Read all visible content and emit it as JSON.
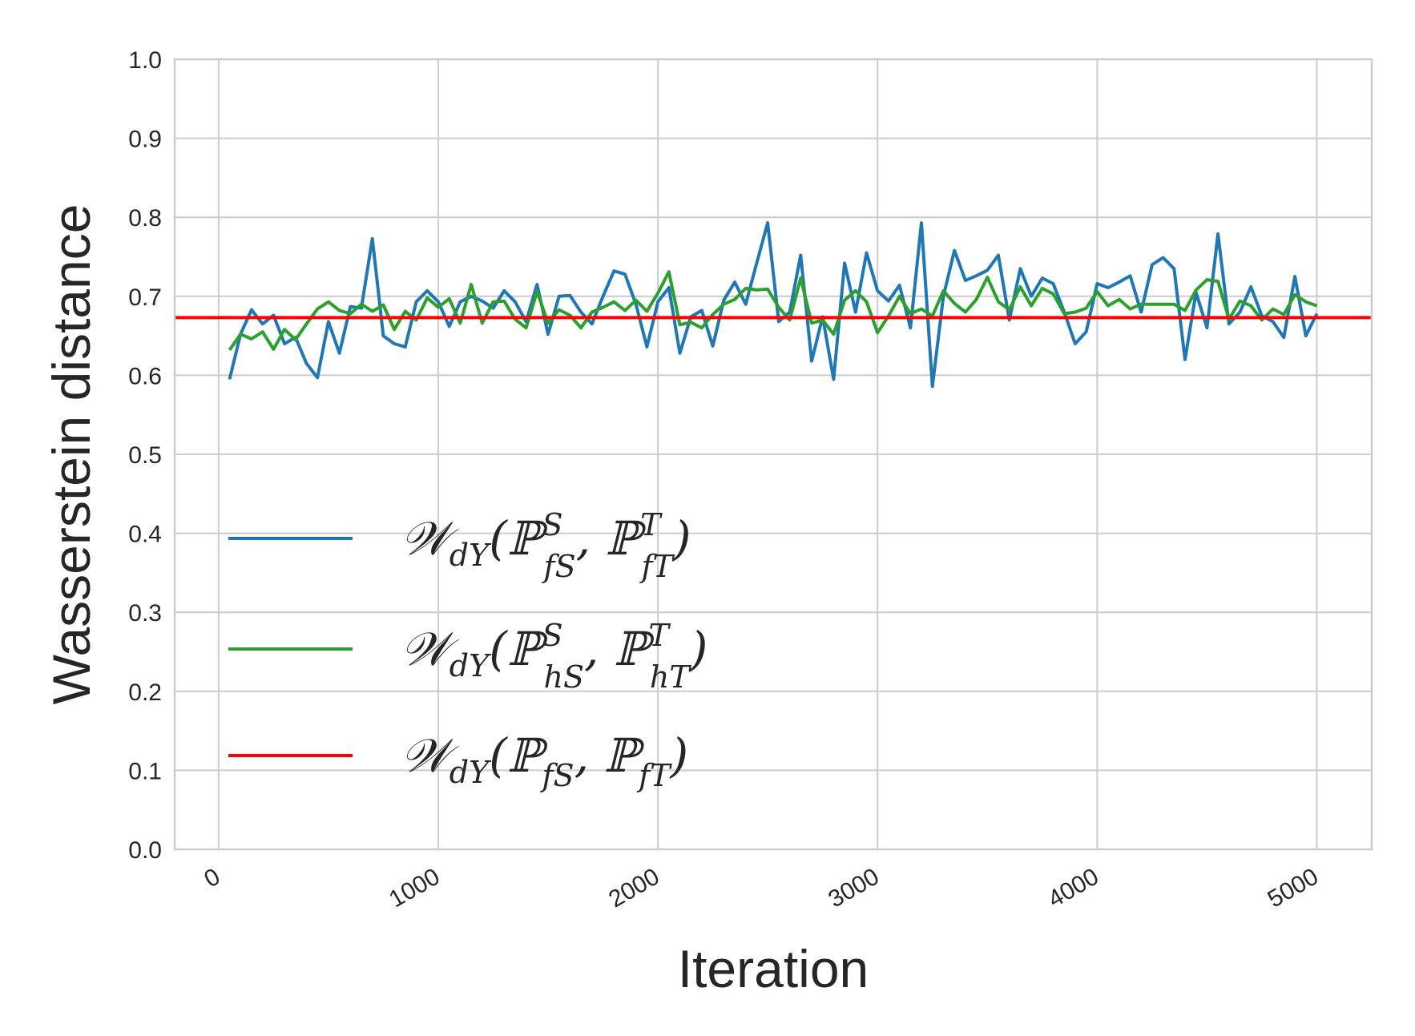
{
  "chart_data": {
    "type": "line",
    "title": "",
    "xlabel": "Iteration",
    "ylabel": "Wasserstein distance",
    "xlim": [
      -200,
      5250
    ],
    "ylim": [
      0.0,
      1.0
    ],
    "x_ticks": [
      0,
      1000,
      2000,
      3000,
      4000,
      5000
    ],
    "x_tick_labels": [
      "0",
      "1000",
      "2000",
      "3000",
      "4000",
      "5000"
    ],
    "y_ticks": [
      0.0,
      0.1,
      0.2,
      0.3,
      0.4,
      0.5,
      0.6,
      0.7,
      0.8,
      0.9,
      1.0
    ],
    "y_tick_labels": [
      "0.0",
      "0.1",
      "0.2",
      "0.3",
      "0.4",
      "0.5",
      "0.6",
      "0.7",
      "0.8",
      "0.9",
      "1.0"
    ],
    "grid": true,
    "legend_position": "lower-left",
    "series": [
      {
        "name": "W_dY(P^S_fS, P^T_fT)",
        "legend": {
          "sup1": "S",
          "sub1": "f",
          "subsub1": "S",
          "sup2": "T",
          "sub2": "f",
          "subsub2": "T"
        },
        "color": "#1f77b4",
        "x": [
          50,
          100,
          150,
          200,
          250,
          300,
          350,
          400,
          450,
          500,
          550,
          600,
          650,
          700,
          750,
          800,
          850,
          900,
          950,
          1000,
          1050,
          1100,
          1150,
          1200,
          1250,
          1300,
          1350,
          1400,
          1450,
          1500,
          1550,
          1600,
          1650,
          1700,
          1750,
          1800,
          1850,
          1900,
          1950,
          2000,
          2050,
          2100,
          2150,
          2200,
          2250,
          2300,
          2350,
          2400,
          2450,
          2500,
          2550,
          2600,
          2650,
          2700,
          2750,
          2800,
          2850,
          2900,
          2950,
          3000,
          3050,
          3100,
          3150,
          3200,
          3250,
          3300,
          3350,
          3400,
          3450,
          3500,
          3550,
          3600,
          3650,
          3700,
          3750,
          3800,
          3850,
          3900,
          3950,
          4000,
          4050,
          4100,
          4150,
          4200,
          4250,
          4300,
          4350,
          4400,
          4450,
          4500,
          4550,
          4600,
          4650,
          4700,
          4750,
          4800,
          4850,
          4900,
          4950,
          5000
        ],
        "y": [
          0.595,
          0.652,
          0.683,
          0.665,
          0.676,
          0.64,
          0.648,
          0.615,
          0.597,
          0.668,
          0.628,
          0.687,
          0.685,
          0.773,
          0.65,
          0.64,
          0.636,
          0.693,
          0.707,
          0.693,
          0.662,
          0.693,
          0.7,
          0.694,
          0.685,
          0.707,
          0.693,
          0.668,
          0.715,
          0.652,
          0.7,
          0.701,
          0.68,
          0.665,
          0.7,
          0.732,
          0.728,
          0.69,
          0.636,
          0.693,
          0.711,
          0.628,
          0.674,
          0.682,
          0.637,
          0.695,
          0.718,
          0.69,
          0.742,
          0.793,
          0.668,
          0.68,
          0.752,
          0.618,
          0.674,
          0.595,
          0.742,
          0.68,
          0.755,
          0.707,
          0.694,
          0.714,
          0.66,
          0.793,
          0.586,
          0.7,
          0.758,
          0.72,
          0.726,
          0.733,
          0.752,
          0.67,
          0.735,
          0.7,
          0.723,
          0.716,
          0.68,
          0.64,
          0.655,
          0.716,
          0.711,
          0.718,
          0.726,
          0.68,
          0.74,
          0.749,
          0.735,
          0.62,
          0.705,
          0.66,
          0.779,
          0.665,
          0.68,
          0.712,
          0.675,
          0.668,
          0.648,
          0.725,
          0.65,
          0.678
        ]
      },
      {
        "name": "W_dY(P^S_hS, P^T_hT)",
        "legend": {
          "sup1": "S",
          "sub1": "h",
          "subsub1": "S",
          "sup2": "T",
          "sub2": "h",
          "subsub2": "T"
        },
        "color": "#2ca02c",
        "x": [
          50,
          100,
          150,
          200,
          250,
          300,
          350,
          400,
          450,
          500,
          550,
          600,
          650,
          700,
          750,
          800,
          850,
          900,
          950,
          1000,
          1050,
          1100,
          1150,
          1200,
          1250,
          1300,
          1350,
          1400,
          1450,
          1500,
          1550,
          1600,
          1650,
          1700,
          1750,
          1800,
          1850,
          1900,
          1950,
          2000,
          2050,
          2100,
          2150,
          2200,
          2250,
          2300,
          2350,
          2400,
          2450,
          2500,
          2550,
          2600,
          2650,
          2700,
          2750,
          2800,
          2850,
          2900,
          2950,
          3000,
          3050,
          3100,
          3150,
          3200,
          3250,
          3300,
          3350,
          3400,
          3450,
          3500,
          3550,
          3600,
          3650,
          3700,
          3750,
          3800,
          3850,
          3900,
          3950,
          4000,
          4050,
          4100,
          4150,
          4200,
          4250,
          4300,
          4350,
          4400,
          4450,
          4500,
          4550,
          4600,
          4650,
          4700,
          4750,
          4800,
          4850,
          4900,
          4950,
          5000
        ],
        "y": [
          0.632,
          0.652,
          0.646,
          0.655,
          0.633,
          0.658,
          0.645,
          0.665,
          0.684,
          0.693,
          0.682,
          0.678,
          0.69,
          0.681,
          0.689,
          0.658,
          0.681,
          0.67,
          0.698,
          0.686,
          0.697,
          0.666,
          0.715,
          0.666,
          0.693,
          0.694,
          0.671,
          0.66,
          0.706,
          0.666,
          0.683,
          0.676,
          0.66,
          0.68,
          0.686,
          0.693,
          0.682,
          0.695,
          0.681,
          0.704,
          0.731,
          0.664,
          0.667,
          0.66,
          0.677,
          0.69,
          0.696,
          0.71,
          0.708,
          0.709,
          0.686,
          0.67,
          0.723,
          0.666,
          0.67,
          0.652,
          0.695,
          0.707,
          0.693,
          0.654,
          0.675,
          0.7,
          0.678,
          0.684,
          0.675,
          0.707,
          0.691,
          0.68,
          0.696,
          0.724,
          0.693,
          0.683,
          0.712,
          0.688,
          0.71,
          0.703,
          0.678,
          0.68,
          0.685,
          0.706,
          0.688,
          0.696,
          0.684,
          0.69,
          0.69,
          0.69,
          0.69,
          0.682,
          0.708,
          0.721,
          0.719,
          0.671,
          0.694,
          0.688,
          0.67,
          0.684,
          0.677,
          0.702,
          0.693,
          0.688
        ]
      },
      {
        "name": "W_dY(P_fS, P_fT)",
        "legend": {
          "sub1": "f",
          "subsub1": "S",
          "sub2": "f",
          "subsub2": "T"
        },
        "color": "#ff0000",
        "constant": 0.673
      }
    ]
  }
}
